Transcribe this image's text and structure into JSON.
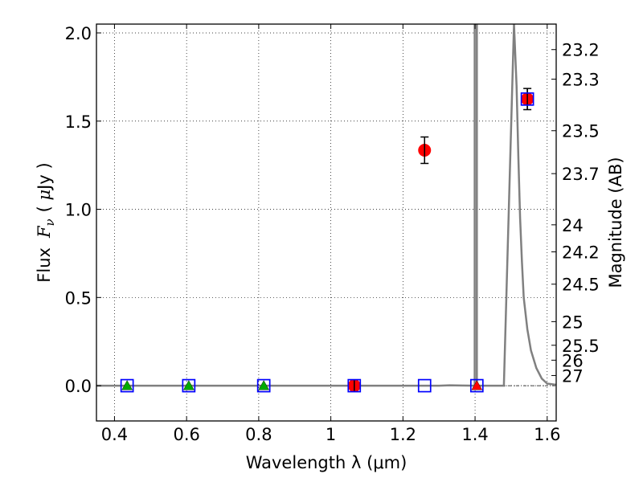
{
  "chart_data": {
    "type": "scatter",
    "xlabel": "Wavelength  λ (μm)",
    "ylabel": "Flux  F_ν  ( μJy )",
    "ylabel_parts": {
      "flux": "Flux",
      "fnu": "F",
      "nu": "ν",
      "open": "( ",
      "mu": "μ",
      "unit": "Jy )"
    },
    "ylabel_right": "Magnitude (AB)",
    "xlim": [
      0.35,
      1.625
    ],
    "ylim": [
      -0.2,
      2.05
    ],
    "x_ticks": [
      {
        "value": 0.4,
        "label": "0.4"
      },
      {
        "value": 0.6,
        "label": "0.6"
      },
      {
        "value": 0.8,
        "label": "0.8"
      },
      {
        "value": 1.0,
        "label": "1"
      },
      {
        "value": 1.2,
        "label": "1.2"
      },
      {
        "value": 1.4,
        "label": "1.4"
      },
      {
        "value": 1.6,
        "label": "1.6"
      }
    ],
    "y_ticks": [
      {
        "value": 0.0,
        "label": "0.0"
      },
      {
        "value": 0.5,
        "label": "0.5"
      },
      {
        "value": 1.0,
        "label": "1.0"
      },
      {
        "value": 1.5,
        "label": "1.5"
      },
      {
        "value": 2.0,
        "label": "2.0"
      }
    ],
    "mag_ticks": [
      {
        "value": 23.2,
        "label": "23.2"
      },
      {
        "value": 23.3,
        "label": "23.3"
      },
      {
        "value": 23.5,
        "label": "23.5"
      },
      {
        "value": 23.7,
        "label": "23.7"
      },
      {
        "value": 24.0,
        "label": "24"
      },
      {
        "value": 24.2,
        "label": "24.2"
      },
      {
        "value": 24.5,
        "label": "24.5"
      },
      {
        "value": 25.0,
        "label": "25"
      },
      {
        "value": 25.5,
        "label": "25.5"
      },
      {
        "value": 26.0,
        "label": "26"
      },
      {
        "value": 27.0,
        "label": "27"
      }
    ],
    "grid": true,
    "series": [
      {
        "marker": "circle",
        "color": "#ff0000",
        "points": [
          {
            "x": 1.065,
            "y": 0.0,
            "err": 0.03
          },
          {
            "x": 1.26,
            "y": 1.335,
            "err": 0.075
          },
          {
            "x": 1.545,
            "y": 1.625,
            "err": 0.06
          }
        ]
      },
      {
        "marker": "triangle",
        "color": "#00aa00",
        "points": [
          {
            "x": 0.435,
            "y": 0.0
          },
          {
            "x": 0.606,
            "y": 0.0
          },
          {
            "x": 0.814,
            "y": 0.0
          }
        ]
      },
      {
        "marker": "triangle",
        "color": "#ff0000",
        "points": [
          {
            "x": 1.405,
            "y": 0.0
          }
        ]
      },
      {
        "marker": "open-square",
        "color": "#0000ff",
        "points": [
          {
            "x": 0.435,
            "y": 0.0
          },
          {
            "x": 0.606,
            "y": 0.0
          },
          {
            "x": 0.814,
            "y": 0.0
          },
          {
            "x": 1.065,
            "y": 0.0
          },
          {
            "x": 1.26,
            "y": 0.0
          },
          {
            "x": 1.405,
            "y": 0.0
          },
          {
            "x": 1.545,
            "y": 1.625
          }
        ]
      }
    ],
    "model_curve": {
      "color": "#808080",
      "points": [
        [
          0.35,
          0.0
        ],
        [
          1.3,
          0.0
        ],
        [
          1.33,
          0.002
        ],
        [
          1.36,
          0.001
        ],
        [
          1.399,
          0.0
        ],
        [
          1.399,
          2.05
        ],
        [
          1.405,
          2.05
        ],
        [
          1.405,
          0.0
        ],
        [
          1.48,
          0.0
        ],
        [
          1.508,
          2.05
        ],
        [
          1.515,
          1.7
        ],
        [
          1.52,
          1.3
        ],
        [
          1.525,
          0.95
        ],
        [
          1.53,
          0.7
        ],
        [
          1.535,
          0.5
        ],
        [
          1.545,
          0.32
        ],
        [
          1.555,
          0.2
        ],
        [
          1.57,
          0.1
        ],
        [
          1.585,
          0.04
        ],
        [
          1.6,
          0.012
        ],
        [
          1.625,
          0.005
        ]
      ]
    }
  }
}
